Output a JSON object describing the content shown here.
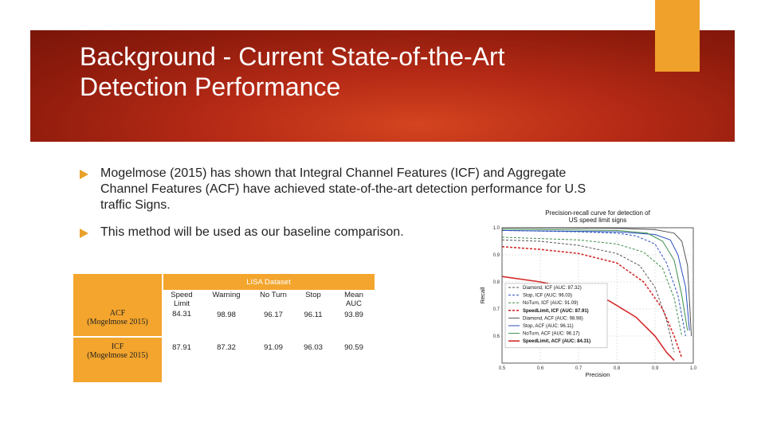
{
  "slide": {
    "title_line1": "Background - Current State-of-the-Art",
    "title_line2": "Detection Performance",
    "bullets": [
      "Mogelmose (2015) has shown that Integral Channel Features (ICF) and Aggregate Channel Features (ACF) have achieved state-of-the-art detection performance for U.S traffic Signs.",
      "This method will be used as our baseline comparison."
    ],
    "colors": {
      "banner": "#b52a16",
      "accent": "#f0a12c"
    }
  },
  "table": {
    "caption": "LISA Dataset",
    "headers": [
      "Speed Limit",
      "Warning",
      "No Turn",
      "Stop",
      "Mean AUC"
    ],
    "rows": [
      {
        "label_line1": "ACF",
        "label_line2": "(Mogelmose 2015)",
        "values": [
          "84.31",
          "98.98",
          "96.17",
          "96.11",
          "93.89"
        ]
      },
      {
        "label_line1": "ICF",
        "label_line2": "(Mogelmose 2015)",
        "values": [
          "87.91",
          "87.32",
          "91.09",
          "96.03",
          "90.59"
        ]
      }
    ]
  },
  "chart_data": {
    "type": "line",
    "title_line1": "Precision-recall curve for detection of",
    "title_line2": "US speed limit signs",
    "xlabel": "Precision",
    "ylabel": "Recall",
    "xlim": [
      0.5,
      1.0
    ],
    "ylim": [
      0.5,
      1.0
    ],
    "xticks": [
      "0.5",
      "0.6",
      "0.7",
      "0.8",
      "0.9",
      "1.0"
    ],
    "yticks": [
      "0.6",
      "0.7",
      "0.8",
      "0.9",
      "1.0"
    ],
    "grid": true,
    "legend": "lower-left",
    "series": [
      {
        "name": "Diamond, ICF (AUC: 87.32)",
        "color": "#555555",
        "dash": true,
        "bold": false,
        "points": [
          [
            0.5,
            0.955
          ],
          [
            0.6,
            0.95
          ],
          [
            0.7,
            0.935
          ],
          [
            0.8,
            0.905
          ],
          [
            0.86,
            0.86
          ],
          [
            0.9,
            0.78
          ],
          [
            0.93,
            0.66
          ],
          [
            0.95,
            0.54
          ]
        ]
      },
      {
        "name": "Stop, ICF (AUC: 96.03)",
        "color": "#2a4fbf",
        "dash": true,
        "bold": false,
        "points": [
          [
            0.5,
            0.99
          ],
          [
            0.7,
            0.985
          ],
          [
            0.8,
            0.98
          ],
          [
            0.85,
            0.97
          ],
          [
            0.9,
            0.94
          ],
          [
            0.93,
            0.87
          ],
          [
            0.96,
            0.75
          ],
          [
            0.98,
            0.6
          ]
        ]
      },
      {
        "name": "NoTurn, ICF (AUC: 91.09)",
        "color": "#3d8f4a",
        "dash": true,
        "bold": false,
        "points": [
          [
            0.5,
            0.965
          ],
          [
            0.7,
            0.955
          ],
          [
            0.8,
            0.94
          ],
          [
            0.87,
            0.91
          ],
          [
            0.92,
            0.85
          ],
          [
            0.95,
            0.74
          ],
          [
            0.97,
            0.6
          ]
        ]
      },
      {
        "name": "SpeedLimit, ICF (AUC: 87.91)",
        "color": "#d42a2a",
        "dash": true,
        "bold": true,
        "points": [
          [
            0.5,
            0.93
          ],
          [
            0.6,
            0.92
          ],
          [
            0.7,
            0.905
          ],
          [
            0.8,
            0.87
          ],
          [
            0.87,
            0.8
          ],
          [
            0.92,
            0.7
          ],
          [
            0.95,
            0.6
          ],
          [
            0.97,
            0.52
          ]
        ]
      },
      {
        "name": "Diamond, ACF (AUC: 98.98)",
        "color": "#555555",
        "dash": false,
        "bold": false,
        "points": [
          [
            0.5,
            1.0
          ],
          [
            0.8,
            0.998
          ],
          [
            0.9,
            0.993
          ],
          [
            0.95,
            0.98
          ],
          [
            0.97,
            0.95
          ],
          [
            0.985,
            0.86
          ],
          [
            0.995,
            0.6
          ]
        ]
      },
      {
        "name": "Stop, ACF (AUC: 96.11)",
        "color": "#2a4fbf",
        "dash": false,
        "bold": false,
        "points": [
          [
            0.5,
            0.99
          ],
          [
            0.8,
            0.985
          ],
          [
            0.9,
            0.975
          ],
          [
            0.94,
            0.955
          ],
          [
            0.96,
            0.9
          ],
          [
            0.98,
            0.78
          ],
          [
            0.99,
            0.62
          ]
        ]
      },
      {
        "name": "NoTurn, ACF (AUC: 96.17)",
        "color": "#3d8f4a",
        "dash": false,
        "bold": false,
        "points": [
          [
            0.5,
            0.995
          ],
          [
            0.8,
            0.99
          ],
          [
            0.88,
            0.98
          ],
          [
            0.92,
            0.95
          ],
          [
            0.95,
            0.88
          ],
          [
            0.97,
            0.75
          ],
          [
            0.985,
            0.62
          ]
        ]
      },
      {
        "name": "SpeedLimit, ACF (AUC: 84.31)",
        "color": "#d42a2a",
        "dash": false,
        "bold": true,
        "points": [
          [
            0.5,
            0.82
          ],
          [
            0.6,
            0.8
          ],
          [
            0.7,
            0.77
          ],
          [
            0.78,
            0.73
          ],
          [
            0.85,
            0.67
          ],
          [
            0.9,
            0.6
          ],
          [
            0.93,
            0.54
          ],
          [
            0.95,
            0.51
          ]
        ]
      }
    ]
  }
}
